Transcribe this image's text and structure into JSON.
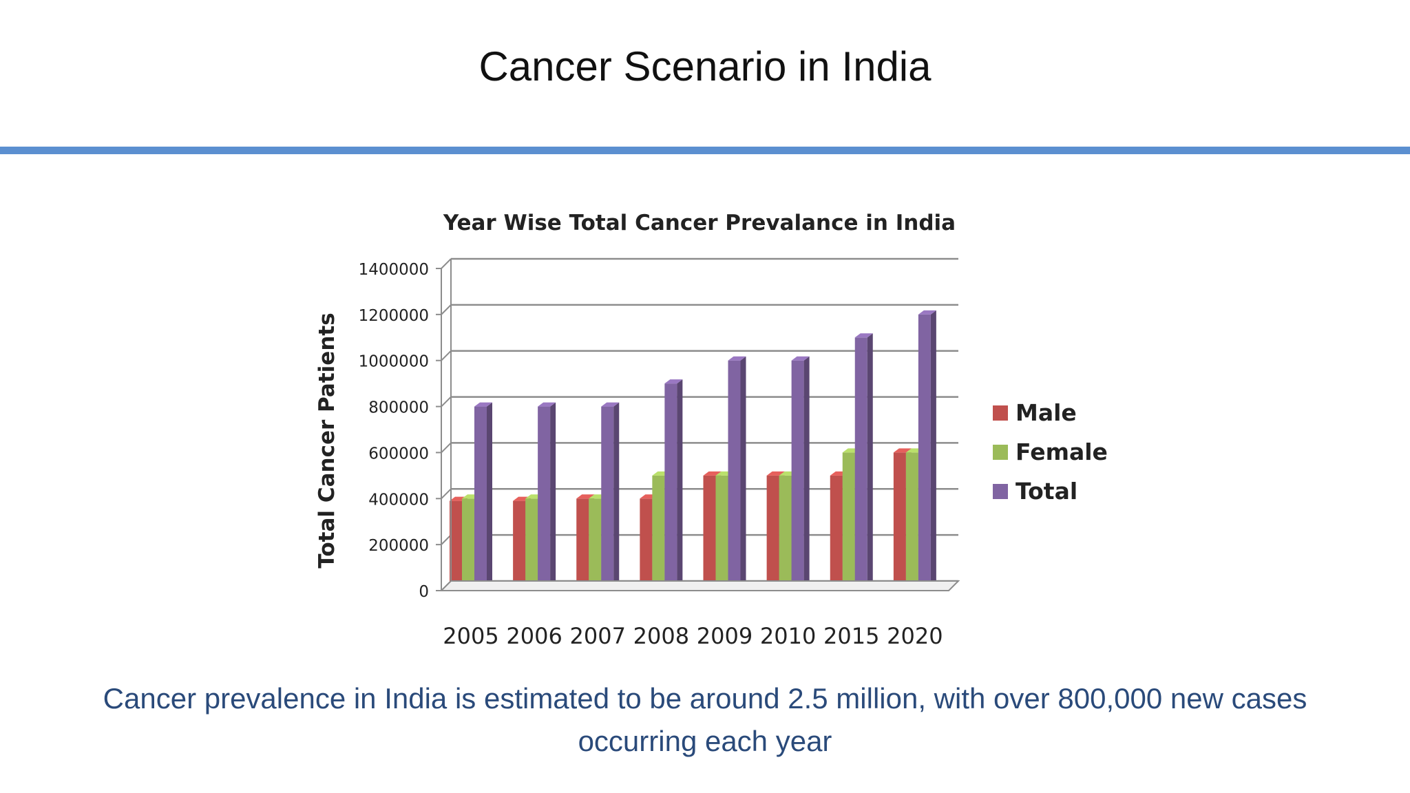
{
  "slide": {
    "title": "Cancer Scenario in India",
    "caption_line1": "Cancer prevalence in India is estimated to be around 2.5 million, with over 800,000 new cases",
    "caption_line2": "occurring each year",
    "rule_color": "#5b8fd0",
    "caption_color": "#2a4a7a"
  },
  "chart_data": {
    "type": "bar",
    "title": "Year Wise Total Cancer Prevalance in India",
    "xlabel": "",
    "ylabel": "Total Cancer Patients",
    "categories": [
      "2005",
      "2006",
      "2007",
      "2008",
      "2009",
      "2010",
      "2015",
      "2020"
    ],
    "series": [
      {
        "name": "Male",
        "color": "#c0504d",
        "values": [
          390000,
          390000,
          400000,
          400000,
          500000,
          500000,
          500000,
          600000
        ]
      },
      {
        "name": "Female",
        "color": "#9bbb59",
        "values": [
          400000,
          400000,
          400000,
          500000,
          500000,
          500000,
          600000,
          600000
        ]
      },
      {
        "name": "Total",
        "color": "#8064a2",
        "values": [
          800000,
          800000,
          800000,
          900000,
          1000000,
          1000000,
          1100000,
          1200000
        ]
      }
    ],
    "ylim": [
      0,
      1400000
    ],
    "yticks": [
      "0",
      "200000",
      "400000",
      "600000",
      "800000",
      "1000000",
      "1200000",
      "1400000"
    ],
    "grid": true,
    "legend_position": "right",
    "style": "3d"
  }
}
